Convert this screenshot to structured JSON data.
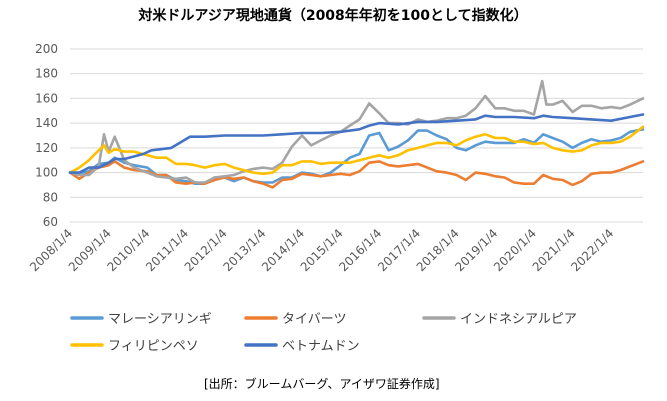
{
  "chart_data": {
    "type": "line",
    "title": "対米ドルアジア現地通貨（2008年年初を100として指数化）",
    "source": "[出所：ブルームバーグ、アイザワ証券作成]",
    "xlabel": "",
    "ylabel": "",
    "ylim": [
      60,
      200
    ],
    "yticks": [
      60,
      80,
      100,
      120,
      140,
      160,
      180,
      200
    ],
    "grid": true,
    "legend_position": "bottom",
    "x_start": "2008/1/4",
    "x_end": "2022/10/31",
    "x_tick_labels": [
      "2008/1/4",
      "2009/1/4",
      "2010/1/4",
      "2011/1/4",
      "2012/1/4",
      "2013/1/4",
      "2014/1/4",
      "2015/1/4",
      "2016/1/4",
      "2017/1/4",
      "2018/1/4",
      "2019/1/4",
      "2020/1/4",
      "2021/1/4",
      "2022/1/4"
    ],
    "series": [
      {
        "name": "マレーシアリンギ",
        "color": "#5B9BD5",
        "points": [
          [
            "2008/1/4",
            100
          ],
          [
            "2008/4/1",
            99
          ],
          [
            "2008/7/1",
            101
          ],
          [
            "2008/10/1",
            107
          ],
          [
            "2009/1/4",
            108
          ],
          [
            "2009/3/1",
            112
          ],
          [
            "2009/6/1",
            108
          ],
          [
            "2009/9/1",
            106
          ],
          [
            "2010/1/4",
            104
          ],
          [
            "2010/4/1",
            98
          ],
          [
            "2010/7/1",
            98
          ],
          [
            "2010/10/1",
            94
          ],
          [
            "2011/1/4",
            93
          ],
          [
            "2011/4/1",
            91
          ],
          [
            "2011/7/1",
            91
          ],
          [
            "2011/10/1",
            96
          ],
          [
            "2012/1/4",
            96
          ],
          [
            "2012/4/1",
            93
          ],
          [
            "2012/7/1",
            96
          ],
          [
            "2012/10/1",
            93
          ],
          [
            "2013/1/4",
            92
          ],
          [
            "2013/4/1",
            92
          ],
          [
            "2013/7/1",
            96
          ],
          [
            "2013/10/1",
            96
          ],
          [
            "2014/1/4",
            100
          ],
          [
            "2014/4/1",
            99
          ],
          [
            "2014/7/1",
            97
          ],
          [
            "2014/10/1",
            100
          ],
          [
            "2015/1/4",
            106
          ],
          [
            "2015/4/1",
            112
          ],
          [
            "2015/7/1",
            115
          ],
          [
            "2015/10/1",
            130
          ],
          [
            "2016/1/4",
            132
          ],
          [
            "2016/4/1",
            118
          ],
          [
            "2016/7/1",
            121
          ],
          [
            "2016/10/1",
            126
          ],
          [
            "2017/1/4",
            134
          ],
          [
            "2017/4/1",
            134
          ],
          [
            "2017/7/1",
            130
          ],
          [
            "2017/10/1",
            127
          ],
          [
            "2018/1/4",
            120
          ],
          [
            "2018/4/1",
            118
          ],
          [
            "2018/7/1",
            122
          ],
          [
            "2018/10/1",
            125
          ],
          [
            "2019/1/4",
            124
          ],
          [
            "2019/4/1",
            124
          ],
          [
            "2019/7/1",
            124
          ],
          [
            "2019/10/1",
            127
          ],
          [
            "2020/1/4",
            124
          ],
          [
            "2020/4/1",
            131
          ],
          [
            "2020/7/1",
            128
          ],
          [
            "2020/10/1",
            125
          ],
          [
            "2021/1/4",
            120
          ],
          [
            "2021/4/1",
            124
          ],
          [
            "2021/7/1",
            127
          ],
          [
            "2021/10/1",
            125
          ],
          [
            "2022/1/4",
            126
          ],
          [
            "2022/4/1",
            128
          ],
          [
            "2022/7/1",
            133
          ],
          [
            "2022/10/31",
            135
          ]
        ]
      },
      {
        "name": "タイバーツ",
        "color": "#ED7D31",
        "points": [
          [
            "2008/1/4",
            100
          ],
          [
            "2008/4/1",
            95
          ],
          [
            "2008/7/1",
            100
          ],
          [
            "2008/10/1",
            104
          ],
          [
            "2009/1/4",
            106
          ],
          [
            "2009/3/1",
            109
          ],
          [
            "2009/6/1",
            104
          ],
          [
            "2009/9/1",
            102
          ],
          [
            "2010/1/4",
            101
          ],
          [
            "2010/4/1",
            98
          ],
          [
            "2010/7/1",
            98
          ],
          [
            "2010/10/1",
            92
          ],
          [
            "2011/1/4",
            91
          ],
          [
            "2011/4/1",
            92
          ],
          [
            "2011/7/1",
            91
          ],
          [
            "2011/10/1",
            94
          ],
          [
            "2012/1/4",
            96
          ],
          [
            "2012/4/1",
            95
          ],
          [
            "2012/7/1",
            96
          ],
          [
            "2012/10/1",
            93
          ],
          [
            "2013/1/4",
            91
          ],
          [
            "2013/4/1",
            88
          ],
          [
            "2013/7/1",
            94
          ],
          [
            "2013/10/1",
            95
          ],
          [
            "2014/1/4",
            99
          ],
          [
            "2014/4/1",
            98
          ],
          [
            "2014/7/1",
            97
          ],
          [
            "2014/10/1",
            98
          ],
          [
            "2015/1/4",
            99
          ],
          [
            "2015/4/1",
            98
          ],
          [
            "2015/7/1",
            101
          ],
          [
            "2015/10/1",
            108
          ],
          [
            "2016/1/4",
            109
          ],
          [
            "2016/4/1",
            106
          ],
          [
            "2016/7/1",
            105
          ],
          [
            "2016/10/1",
            106
          ],
          [
            "2017/1/4",
            107
          ],
          [
            "2017/4/1",
            104
          ],
          [
            "2017/7/1",
            101
          ],
          [
            "2017/10/1",
            100
          ],
          [
            "2018/1/4",
            98
          ],
          [
            "2018/4/1",
            94
          ],
          [
            "2018/7/1",
            100
          ],
          [
            "2018/10/1",
            99
          ],
          [
            "2019/1/4",
            97
          ],
          [
            "2019/4/1",
            96
          ],
          [
            "2019/7/1",
            92
          ],
          [
            "2019/10/1",
            91
          ],
          [
            "2020/1/4",
            91
          ],
          [
            "2020/4/1",
            98
          ],
          [
            "2020/7/1",
            95
          ],
          [
            "2020/10/1",
            94
          ],
          [
            "2021/1/4",
            90
          ],
          [
            "2021/4/1",
            93
          ],
          [
            "2021/7/1",
            99
          ],
          [
            "2021/10/1",
            100
          ],
          [
            "2022/1/4",
            100
          ],
          [
            "2022/4/1",
            102
          ],
          [
            "2022/7/1",
            105
          ],
          [
            "2022/10/31",
            109
          ]
        ]
      },
      {
        "name": "インドネシアルピア",
        "color": "#A5A5A5",
        "points": [
          [
            "2008/1/4",
            100
          ],
          [
            "2008/4/1",
            98
          ],
          [
            "2008/7/1",
            98
          ],
          [
            "2008/10/1",
            105
          ],
          [
            "2008/11/20",
            131
          ],
          [
            "2009/1/4",
            117
          ],
          [
            "2009/3/1",
            129
          ],
          [
            "2009/6/1",
            110
          ],
          [
            "2009/9/1",
            104
          ],
          [
            "2010/1/4",
            100
          ],
          [
            "2010/4/1",
            97
          ],
          [
            "2010/7/1",
            96
          ],
          [
            "2010/10/1",
            95
          ],
          [
            "2011/1/4",
            96
          ],
          [
            "2011/4/1",
            92
          ],
          [
            "2011/7/1",
            92
          ],
          [
            "2011/10/1",
            96
          ],
          [
            "2012/1/4",
            97
          ],
          [
            "2012/4/1",
            98
          ],
          [
            "2012/7/1",
            101
          ],
          [
            "2012/10/1",
            103
          ],
          [
            "2013/1/4",
            104
          ],
          [
            "2013/4/1",
            103
          ],
          [
            "2013/7/1",
            108
          ],
          [
            "2013/10/1",
            121
          ],
          [
            "2014/1/4",
            130
          ],
          [
            "2014/4/1",
            122
          ],
          [
            "2014/7/1",
            126
          ],
          [
            "2014/10/1",
            130
          ],
          [
            "2015/1/4",
            133
          ],
          [
            "2015/4/1",
            138
          ],
          [
            "2015/7/1",
            143
          ],
          [
            "2015/10/1",
            156
          ],
          [
            "2016/1/4",
            148
          ],
          [
            "2016/4/1",
            140
          ],
          [
            "2016/7/1",
            140
          ],
          [
            "2016/10/1",
            139
          ],
          [
            "2017/1/4",
            143
          ],
          [
            "2017/4/1",
            141
          ],
          [
            "2017/7/1",
            142
          ],
          [
            "2017/10/1",
            144
          ],
          [
            "2018/1/4",
            144
          ],
          [
            "2018/4/1",
            146
          ],
          [
            "2018/7/1",
            152
          ],
          [
            "2018/10/1",
            162
          ],
          [
            "2019/1/4",
            152
          ],
          [
            "2019/4/1",
            152
          ],
          [
            "2019/7/1",
            150
          ],
          [
            "2019/10/1",
            150
          ],
          [
            "2020/1/4",
            147
          ],
          [
            "2020/3/23",
            174
          ],
          [
            "2020/5/1",
            155
          ],
          [
            "2020/7/1",
            155
          ],
          [
            "2020/10/1",
            158
          ],
          [
            "2021/1/4",
            149
          ],
          [
            "2021/4/1",
            154
          ],
          [
            "2021/7/1",
            154
          ],
          [
            "2021/10/1",
            152
          ],
          [
            "2022/1/4",
            153
          ],
          [
            "2022/4/1",
            152
          ],
          [
            "2022/7/1",
            155
          ],
          [
            "2022/10/31",
            160
          ]
        ]
      },
      {
        "name": "フィリピンペソ",
        "color": "#FFC000",
        "points": [
          [
            "2008/1/4",
            100
          ],
          [
            "2008/4/1",
            104
          ],
          [
            "2008/7/1",
            110
          ],
          [
            "2008/10/1",
            118
          ],
          [
            "2008/11/20",
            122
          ],
          [
            "2009/1/4",
            116
          ],
          [
            "2009/3/1",
            119
          ],
          [
            "2009/6/1",
            117
          ],
          [
            "2009/9/1",
            117
          ],
          [
            "2010/1/4",
            114
          ],
          [
            "2010/4/1",
            112
          ],
          [
            "2010/7/1",
            112
          ],
          [
            "2010/10/1",
            107
          ],
          [
            "2011/1/4",
            107
          ],
          [
            "2011/4/1",
            106
          ],
          [
            "2011/7/1",
            104
          ],
          [
            "2011/10/1",
            106
          ],
          [
            "2012/1/4",
            107
          ],
          [
            "2012/4/1",
            104
          ],
          [
            "2012/7/1",
            102
          ],
          [
            "2012/10/1",
            100
          ],
          [
            "2013/1/4",
            99
          ],
          [
            "2013/4/1",
            100
          ],
          [
            "2013/7/1",
            106
          ],
          [
            "2013/10/1",
            106
          ],
          [
            "2014/1/4",
            109
          ],
          [
            "2014/4/1",
            109
          ],
          [
            "2014/7/1",
            107
          ],
          [
            "2014/10/1",
            108
          ],
          [
            "2015/1/4",
            108
          ],
          [
            "2015/4/1",
            108
          ],
          [
            "2015/7/1",
            110
          ],
          [
            "2015/10/1",
            112
          ],
          [
            "2016/1/4",
            114
          ],
          [
            "2016/4/1",
            112
          ],
          [
            "2016/7/1",
            114
          ],
          [
            "2016/10/1",
            118
          ],
          [
            "2017/1/4",
            120
          ],
          [
            "2017/4/1",
            122
          ],
          [
            "2017/7/1",
            124
          ],
          [
            "2017/10/1",
            124
          ],
          [
            "2018/1/4",
            122
          ],
          [
            "2018/4/1",
            126
          ],
          [
            "2018/7/1",
            129
          ],
          [
            "2018/10/1",
            131
          ],
          [
            "2019/1/4",
            128
          ],
          [
            "2019/4/1",
            128
          ],
          [
            "2019/7/1",
            125
          ],
          [
            "2019/10/1",
            125
          ],
          [
            "2020/1/4",
            123
          ],
          [
            "2020/4/1",
            124
          ],
          [
            "2020/7/1",
            120
          ],
          [
            "2020/10/1",
            118
          ],
          [
            "2021/1/4",
            117
          ],
          [
            "2021/4/1",
            118
          ],
          [
            "2021/7/1",
            122
          ],
          [
            "2021/10/1",
            124
          ],
          [
            "2022/1/4",
            124
          ],
          [
            "2022/4/1",
            125
          ],
          [
            "2022/7/1",
            129
          ],
          [
            "2022/10/31",
            137
          ]
        ]
      },
      {
        "name": "ベトナムドン",
        "color": "#4472C4",
        "points": [
          [
            "2008/1/4",
            100
          ],
          [
            "2008/4/1",
            100
          ],
          [
            "2008/7/1",
            104
          ],
          [
            "2008/10/1",
            104
          ],
          [
            "2009/1/4",
            108
          ],
          [
            "2009/3/1",
            111
          ],
          [
            "2009/6/1",
            111
          ],
          [
            "2009/11/26",
            115
          ],
          [
            "2010/2/11",
            118
          ],
          [
            "2010/8/18",
            120
          ],
          [
            "2011/2/11",
            129
          ],
          [
            "2011/7/1",
            129
          ],
          [
            "2012/1/4",
            130
          ],
          [
            "2012/7/1",
            130
          ],
          [
            "2013/1/4",
            130
          ],
          [
            "2013/7/1",
            131
          ],
          [
            "2014/1/4",
            132
          ],
          [
            "2014/7/1",
            132
          ],
          [
            "2015/1/4",
            133
          ],
          [
            "2015/7/1",
            135
          ],
          [
            "2015/10/1",
            138
          ],
          [
            "2016/1/4",
            140
          ],
          [
            "2016/7/1",
            139
          ],
          [
            "2017/1/4",
            141
          ],
          [
            "2017/7/1",
            141
          ],
          [
            "2018/1/4",
            142
          ],
          [
            "2018/7/1",
            143
          ],
          [
            "2018/10/1",
            146
          ],
          [
            "2019/1/4",
            145
          ],
          [
            "2019/7/1",
            145
          ],
          [
            "2020/1/4",
            144
          ],
          [
            "2020/4/1",
            146
          ],
          [
            "2020/7/1",
            145
          ],
          [
            "2021/1/4",
            144
          ],
          [
            "2021/7/1",
            143
          ],
          [
            "2022/1/4",
            142
          ],
          [
            "2022/7/1",
            145
          ],
          [
            "2022/10/31",
            147
          ]
        ]
      }
    ]
  }
}
